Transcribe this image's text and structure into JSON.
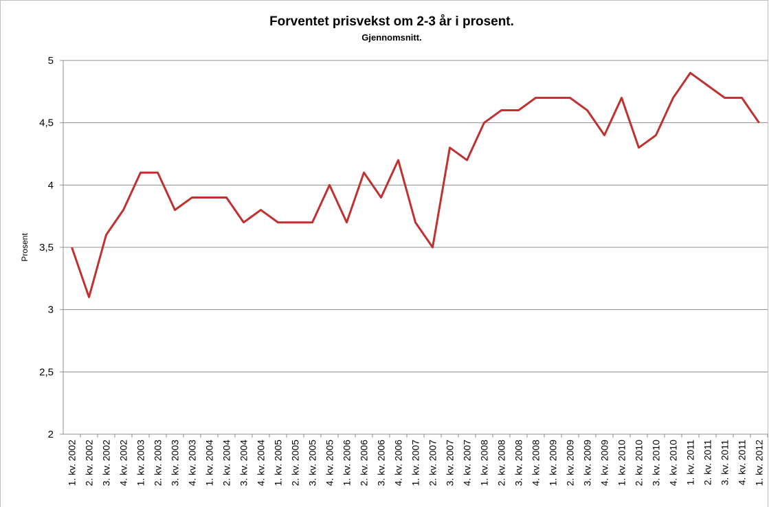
{
  "chart_data": {
    "type": "line",
    "title": "Forventet prisvekst om 2-3 år i prosent.",
    "subtitle": "Gjennomsnitt.",
    "y_label": "Prosent",
    "categories": [
      "1. kv. 2002",
      "2. kv. 2002",
      "3. kv. 2002",
      "4. kv. 2002",
      "1. kv. 2003",
      "2. kv. 2003",
      "3. kv. 2003",
      "4. kv. 2003",
      "1. kv. 2004",
      "2. kv. 2004",
      "3. kv. 2004",
      "4. kv. 2004",
      "1. kv. 2005",
      "2. kv. 2005",
      "3. kv. 2005",
      "4. kv. 2005",
      "1. kv. 2006",
      "2. kv. 2006",
      "3. kv. 2006",
      "4. kv. 2006",
      "1. kv. 2007",
      "2. kv. 2007",
      "3. kv. 2007",
      "4. kv. 2007",
      "1. kv. 2008",
      "2. kv. 2008",
      "3. kv. 2008",
      "4. kv. 2008",
      "1. kv. 2009",
      "2. kv. 2009",
      "3. kv. 2009",
      "4. kv. 2009",
      "1. kv. 2010",
      "2. kv. 2010",
      "3. kv. 2010",
      "4. kv. 2010",
      "1. kv. 2011",
      "2. kv. 2011",
      "3. kv. 2011",
      "4. kv. 2011",
      "1. kv. 2012"
    ],
    "values": [
      3.5,
      3.1,
      3.6,
      3.8,
      4.1,
      4.1,
      3.8,
      3.9,
      3.9,
      3.9,
      3.7,
      3.8,
      3.7,
      3.7,
      3.7,
      4.0,
      3.7,
      4.1,
      3.9,
      4.2,
      3.7,
      3.5,
      4.3,
      4.2,
      4.5,
      4.6,
      4.6,
      4.7,
      4.7,
      4.7,
      4.6,
      4.4,
      4.7,
      4.3,
      4.4,
      4.7,
      4.9,
      4.8,
      4.7,
      4.7,
      4.5
    ],
    "color": "#c0302e",
    "ylim": [
      2,
      5
    ],
    "yticks": [
      2,
      {
        "value": 2.5,
        "label": "2,5"
      },
      3,
      {
        "value": 3.5,
        "label": "3,5"
      },
      4,
      {
        "value": 4.5,
        "label": "4,5"
      },
      5
    ],
    "grid": true
  }
}
